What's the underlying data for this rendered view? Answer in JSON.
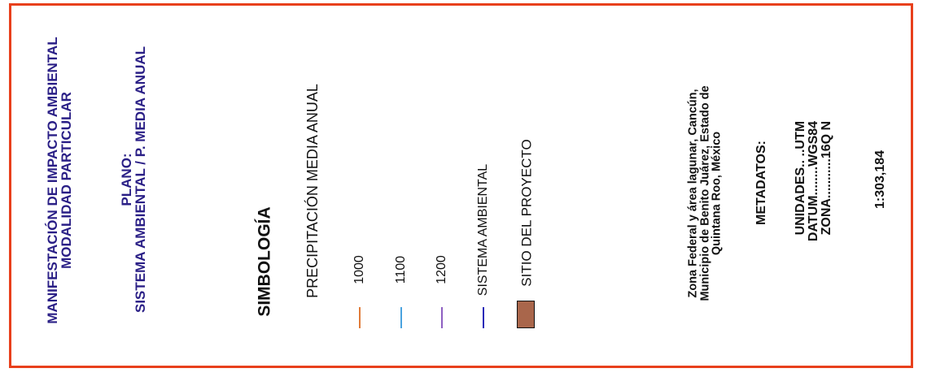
{
  "header": {
    "title_line1": "MANIFESTACIÓN DE IMPACTO AMBIENTAL",
    "title_line2": "MODALIDAD PARTICULAR"
  },
  "plano": {
    "label": "PLANO:",
    "name": "SISTEMA AMBIENTAL / P. MEDIA ANUAL"
  },
  "legend": {
    "title": "SIMBOLOGÍA",
    "subtitle": "PRECIPITACIÓN MEDIA ANUAL",
    "items": [
      {
        "label": "1000",
        "color": "#e07b39"
      },
      {
        "label": "1100",
        "color": "#4aa3df"
      },
      {
        "label": "1200",
        "color": "#8e5fc2"
      },
      {
        "label": "SISTEMA AMBIENTAL",
        "color": "#2a2ab8"
      },
      {
        "label": "SITIO DEL PROYECTO",
        "color": "#a9664b"
      }
    ]
  },
  "location": {
    "line1": "Zona Federal y área lagunar, Cancún,",
    "line2": "Municipio de Benito Juárez, Estado de",
    "line3": "Quintana Roo, México"
  },
  "metadata": {
    "title": "METADATOS:",
    "unidades": "UNIDADES.. ..UTM",
    "datum": "DATUM........WGS84",
    "zona": "ZONA...........16Q N"
  },
  "scale": "1:303,184",
  "colors": {
    "border": "#e8401c",
    "title_text": "#2a1f86"
  }
}
